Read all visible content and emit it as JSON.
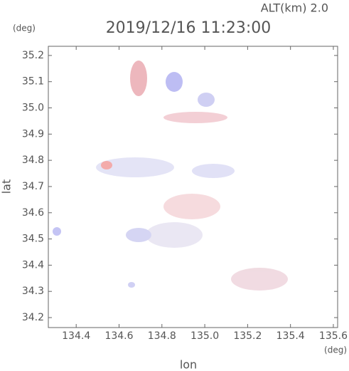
{
  "chart_data": {
    "type": "radar-map",
    "annotation": "ALT(km) 2.0",
    "title": "2019/12/16 11:23:00",
    "y_unit": "(deg)",
    "x_unit": "(deg)",
    "ylabel": "lat",
    "xlabel": "lon",
    "xlim": [
      134.27,
      135.62
    ],
    "ylim": [
      34.162,
      35.235
    ],
    "xticks": [
      134.4,
      134.6,
      134.8,
      {
        "value": 135.0,
        "label": "135.0"
      },
      135.2,
      135.4,
      135.6
    ],
    "yticks": [
      34.2,
      34.3,
      34.4,
      34.5,
      34.6,
      34.7,
      34.8,
      34.9,
      {
        "value": 35.0,
        "label": "35.0"
      },
      35.1,
      35.2
    ]
  }
}
